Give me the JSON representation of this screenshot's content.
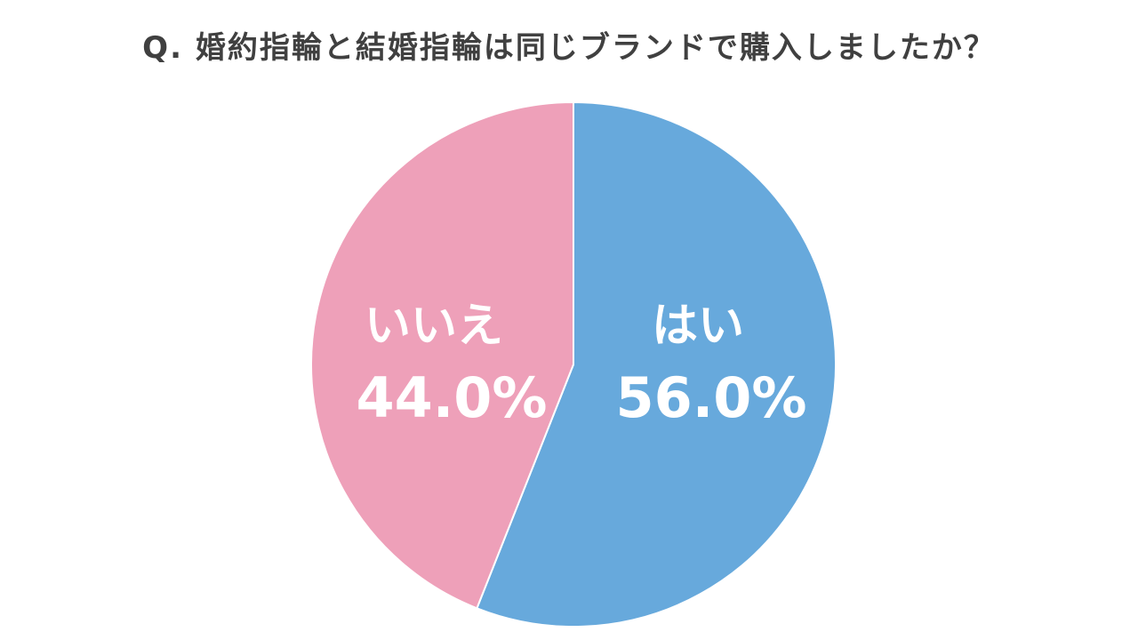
{
  "title": "Q. 婚約指輪と結婚指輪は同じブランドで購入しましたか？",
  "chart_data": {
    "type": "pie",
    "title": "Q. 婚約指輪と結婚指輪は同じブランドで購入しましたか？",
    "start": "12 o'clock, clockwise",
    "slices": [
      {
        "label": "はい",
        "value": 56.0,
        "value_label": "56.0%",
        "color": "#67a9dc"
      },
      {
        "label": "いいえ",
        "value": 44.0,
        "value_label": "44.0%",
        "color": "#eea0b9"
      }
    ]
  }
}
